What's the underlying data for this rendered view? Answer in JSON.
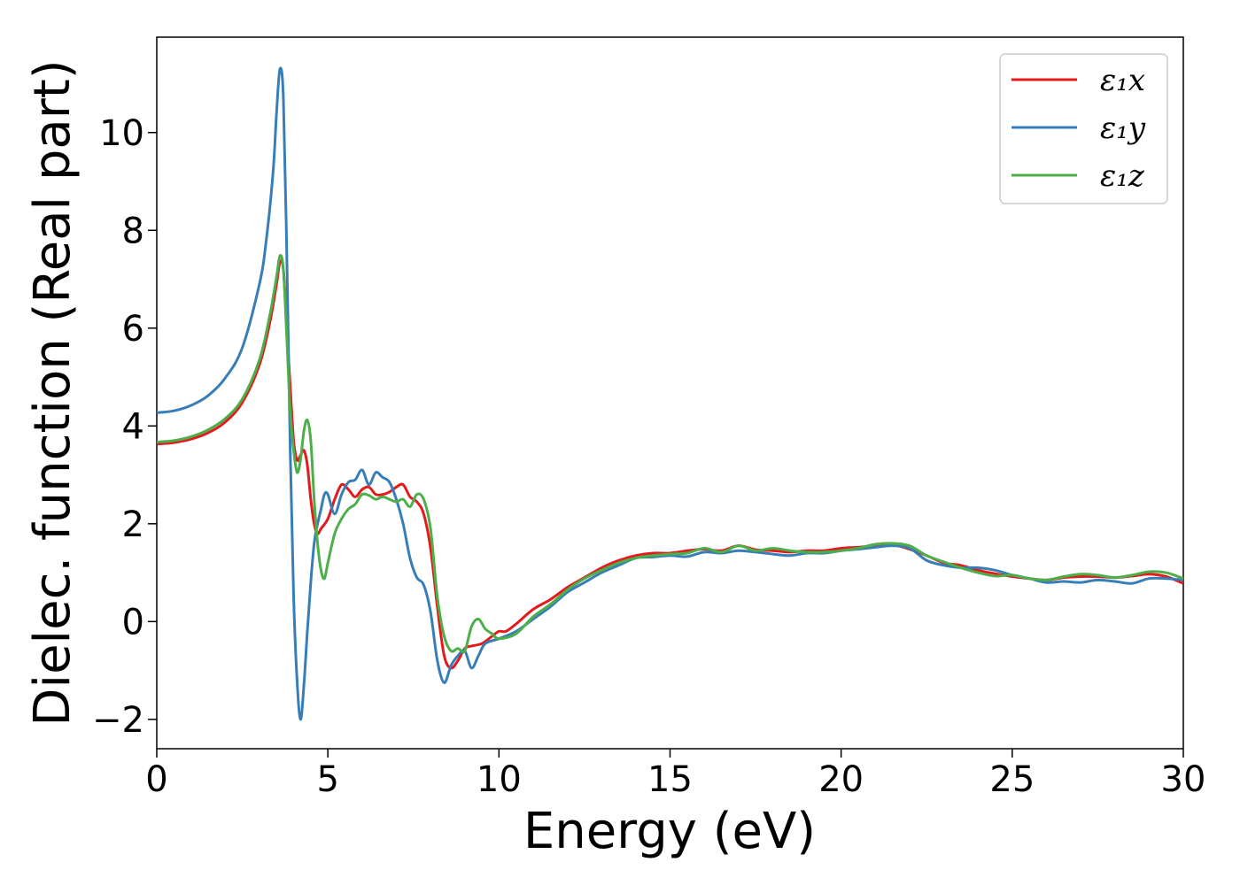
{
  "chart_data": {
    "type": "line",
    "xlabel": "Energy (eV)",
    "ylabel": "Dielec. function (Real part)",
    "xlim": [
      0,
      30
    ],
    "ylim": [
      -2.6,
      11.95
    ],
    "grid": false,
    "legend_position": "top-right",
    "x_ticks": [
      0,
      5,
      10,
      15,
      20,
      25,
      30
    ],
    "x_tick_labels": [
      "0",
      "5",
      "10",
      "15",
      "20",
      "25",
      "30"
    ],
    "y_ticks": [
      -2,
      0,
      2,
      4,
      6,
      8,
      10
    ],
    "y_tick_labels": [
      "−2",
      "0",
      "2",
      "4",
      "6",
      "8",
      "10"
    ],
    "series": [
      {
        "name": "ε₁x",
        "color": "#e41a1c",
        "points": [
          [
            0,
            3.63
          ],
          [
            0.5,
            3.66
          ],
          [
            1,
            3.73
          ],
          [
            1.5,
            3.86
          ],
          [
            2,
            4.08
          ],
          [
            2.5,
            4.48
          ],
          [
            3,
            5.25
          ],
          [
            3.3,
            6.1
          ],
          [
            3.5,
            6.9
          ],
          [
            3.6,
            7.35
          ],
          [
            3.7,
            7.2
          ],
          [
            3.8,
            6.0
          ],
          [
            3.9,
            4.8
          ],
          [
            4.0,
            3.7
          ],
          [
            4.1,
            3.3
          ],
          [
            4.2,
            3.4
          ],
          [
            4.3,
            3.5
          ],
          [
            4.4,
            3.2
          ],
          [
            4.5,
            2.5
          ],
          [
            4.6,
            2.0
          ],
          [
            4.7,
            1.8
          ],
          [
            4.8,
            1.9
          ],
          [
            5.0,
            2.1
          ],
          [
            5.2,
            2.5
          ],
          [
            5.4,
            2.8
          ],
          [
            5.6,
            2.7
          ],
          [
            5.8,
            2.55
          ],
          [
            6.0,
            2.7
          ],
          [
            6.2,
            2.75
          ],
          [
            6.4,
            2.6
          ],
          [
            6.6,
            2.6
          ],
          [
            6.8,
            2.65
          ],
          [
            7.0,
            2.75
          ],
          [
            7.2,
            2.8
          ],
          [
            7.4,
            2.55
          ],
          [
            7.6,
            2.45
          ],
          [
            7.8,
            2.2
          ],
          [
            8.0,
            1.5
          ],
          [
            8.2,
            0.3
          ],
          [
            8.4,
            -0.7
          ],
          [
            8.6,
            -0.95
          ],
          [
            8.8,
            -0.8
          ],
          [
            9.0,
            -0.55
          ],
          [
            9.2,
            -0.5
          ],
          [
            9.5,
            -0.45
          ],
          [
            9.8,
            -0.3
          ],
          [
            10.0,
            -0.2
          ],
          [
            10.2,
            -0.2
          ],
          [
            10.5,
            -0.05
          ],
          [
            11.0,
            0.25
          ],
          [
            11.5,
            0.45
          ],
          [
            12.0,
            0.7
          ],
          [
            12.5,
            0.9
          ],
          [
            13.0,
            1.1
          ],
          [
            13.5,
            1.25
          ],
          [
            14.0,
            1.35
          ],
          [
            14.5,
            1.4
          ],
          [
            15.0,
            1.4
          ],
          [
            15.5,
            1.45
          ],
          [
            16.0,
            1.48
          ],
          [
            16.5,
            1.45
          ],
          [
            17.0,
            1.55
          ],
          [
            17.5,
            1.47
          ],
          [
            18.0,
            1.45
          ],
          [
            18.5,
            1.42
          ],
          [
            19.0,
            1.45
          ],
          [
            19.5,
            1.45
          ],
          [
            20.0,
            1.5
          ],
          [
            20.5,
            1.52
          ],
          [
            21.0,
            1.55
          ],
          [
            21.5,
            1.57
          ],
          [
            22.0,
            1.48
          ],
          [
            22.5,
            1.35
          ],
          [
            23.0,
            1.2
          ],
          [
            23.5,
            1.15
          ],
          [
            24.0,
            1.05
          ],
          [
            24.5,
            0.98
          ],
          [
            25.0,
            0.92
          ],
          [
            25.5,
            0.88
          ],
          [
            26.0,
            0.85
          ],
          [
            26.5,
            0.9
          ],
          [
            27.0,
            0.92
          ],
          [
            27.5,
            0.92
          ],
          [
            28.0,
            0.9
          ],
          [
            28.5,
            0.93
          ],
          [
            29.0,
            0.97
          ],
          [
            29.5,
            0.92
          ],
          [
            30.0,
            0.78
          ]
        ]
      },
      {
        "name": "ε₁y",
        "color": "#377eb8",
        "points": [
          [
            0,
            4.27
          ],
          [
            0.5,
            4.31
          ],
          [
            1,
            4.42
          ],
          [
            1.5,
            4.62
          ],
          [
            2,
            4.98
          ],
          [
            2.5,
            5.6
          ],
          [
            3,
            6.9
          ],
          [
            3.2,
            7.8
          ],
          [
            3.4,
            9.2
          ],
          [
            3.5,
            10.4
          ],
          [
            3.6,
            11.3
          ],
          [
            3.7,
            10.7
          ],
          [
            3.8,
            7.5
          ],
          [
            3.9,
            3.5
          ],
          [
            4.0,
            0.5
          ],
          [
            4.1,
            -1.2
          ],
          [
            4.2,
            -2.0
          ],
          [
            4.3,
            -1.3
          ],
          [
            4.4,
            -0.2
          ],
          [
            4.5,
            0.8
          ],
          [
            4.6,
            1.6
          ],
          [
            4.7,
            2.0
          ],
          [
            4.8,
            2.3
          ],
          [
            4.9,
            2.6
          ],
          [
            5.0,
            2.6
          ],
          [
            5.2,
            2.2
          ],
          [
            5.4,
            2.6
          ],
          [
            5.6,
            2.85
          ],
          [
            5.8,
            2.9
          ],
          [
            6.0,
            3.1
          ],
          [
            6.2,
            2.8
          ],
          [
            6.4,
            3.05
          ],
          [
            6.6,
            2.95
          ],
          [
            6.8,
            2.85
          ],
          [
            7.0,
            2.5
          ],
          [
            7.2,
            2.0
          ],
          [
            7.4,
            1.3
          ],
          [
            7.6,
            0.9
          ],
          [
            7.8,
            0.75
          ],
          [
            8.0,
            0.2
          ],
          [
            8.2,
            -0.8
          ],
          [
            8.4,
            -1.25
          ],
          [
            8.6,
            -0.9
          ],
          [
            8.8,
            -0.7
          ],
          [
            9.0,
            -0.6
          ],
          [
            9.2,
            -0.95
          ],
          [
            9.4,
            -0.7
          ],
          [
            9.6,
            -0.45
          ],
          [
            10.0,
            -0.35
          ],
          [
            10.5,
            -0.2
          ],
          [
            11.0,
            0.05
          ],
          [
            11.5,
            0.3
          ],
          [
            12.0,
            0.6
          ],
          [
            12.5,
            0.8
          ],
          [
            13.0,
            1.0
          ],
          [
            13.5,
            1.15
          ],
          [
            14.0,
            1.3
          ],
          [
            14.5,
            1.32
          ],
          [
            15.0,
            1.35
          ],
          [
            15.5,
            1.33
          ],
          [
            16.0,
            1.42
          ],
          [
            16.5,
            1.4
          ],
          [
            17.0,
            1.45
          ],
          [
            17.5,
            1.42
          ],
          [
            18.0,
            1.38
          ],
          [
            18.5,
            1.35
          ],
          [
            19.0,
            1.4
          ],
          [
            19.5,
            1.4
          ],
          [
            20.0,
            1.45
          ],
          [
            20.5,
            1.48
          ],
          [
            21.0,
            1.52
          ],
          [
            21.5,
            1.55
          ],
          [
            22.0,
            1.5
          ],
          [
            22.5,
            1.25
          ],
          [
            23.0,
            1.15
          ],
          [
            23.5,
            1.1
          ],
          [
            24.0,
            1.1
          ],
          [
            24.5,
            1.05
          ],
          [
            25.0,
            0.95
          ],
          [
            25.5,
            0.88
          ],
          [
            26.0,
            0.8
          ],
          [
            26.5,
            0.82
          ],
          [
            27.0,
            0.8
          ],
          [
            27.5,
            0.85
          ],
          [
            28.0,
            0.82
          ],
          [
            28.5,
            0.78
          ],
          [
            29.0,
            0.88
          ],
          [
            29.5,
            0.88
          ],
          [
            30.0,
            0.85
          ]
        ]
      },
      {
        "name": "ε₁z",
        "color": "#4daf4a",
        "points": [
          [
            0,
            3.67
          ],
          [
            0.5,
            3.7
          ],
          [
            1,
            3.78
          ],
          [
            1.5,
            3.92
          ],
          [
            2,
            4.15
          ],
          [
            2.5,
            4.55
          ],
          [
            3,
            5.35
          ],
          [
            3.3,
            6.25
          ],
          [
            3.5,
            7.05
          ],
          [
            3.6,
            7.48
          ],
          [
            3.7,
            7.2
          ],
          [
            3.8,
            5.8
          ],
          [
            3.9,
            4.3
          ],
          [
            4.0,
            3.5
          ],
          [
            4.1,
            3.05
          ],
          [
            4.2,
            3.3
          ],
          [
            4.3,
            3.9
          ],
          [
            4.4,
            4.12
          ],
          [
            4.5,
            3.7
          ],
          [
            4.6,
            2.5
          ],
          [
            4.7,
            1.6
          ],
          [
            4.8,
            1.05
          ],
          [
            4.9,
            0.88
          ],
          [
            5.0,
            1.2
          ],
          [
            5.2,
            1.8
          ],
          [
            5.4,
            2.1
          ],
          [
            5.6,
            2.3
          ],
          [
            5.8,
            2.4
          ],
          [
            6.0,
            2.6
          ],
          [
            6.2,
            2.58
          ],
          [
            6.4,
            2.5
          ],
          [
            6.6,
            2.55
          ],
          [
            6.8,
            2.5
          ],
          [
            7.0,
            2.45
          ],
          [
            7.2,
            2.5
          ],
          [
            7.4,
            2.35
          ],
          [
            7.6,
            2.6
          ],
          [
            7.8,
            2.5
          ],
          [
            8.0,
            1.9
          ],
          [
            8.2,
            0.5
          ],
          [
            8.4,
            -0.3
          ],
          [
            8.6,
            -0.6
          ],
          [
            8.8,
            -0.55
          ],
          [
            9.0,
            -0.6
          ],
          [
            9.2,
            -0.1
          ],
          [
            9.4,
            0.05
          ],
          [
            9.6,
            -0.15
          ],
          [
            9.8,
            -0.25
          ],
          [
            10.0,
            -0.35
          ],
          [
            10.5,
            -0.25
          ],
          [
            11.0,
            0.1
          ],
          [
            11.5,
            0.35
          ],
          [
            12.0,
            0.65
          ],
          [
            12.5,
            0.88
          ],
          [
            13.0,
            1.05
          ],
          [
            13.5,
            1.2
          ],
          [
            14.0,
            1.3
          ],
          [
            14.5,
            1.35
          ],
          [
            15.0,
            1.38
          ],
          [
            15.5,
            1.4
          ],
          [
            16.0,
            1.5
          ],
          [
            16.5,
            1.42
          ],
          [
            17.0,
            1.55
          ],
          [
            17.5,
            1.45
          ],
          [
            18.0,
            1.5
          ],
          [
            18.5,
            1.45
          ],
          [
            19.0,
            1.42
          ],
          [
            19.5,
            1.42
          ],
          [
            20.0,
            1.45
          ],
          [
            20.5,
            1.5
          ],
          [
            21.0,
            1.58
          ],
          [
            21.5,
            1.6
          ],
          [
            22.0,
            1.55
          ],
          [
            22.5,
            1.35
          ],
          [
            23.0,
            1.22
          ],
          [
            23.5,
            1.1
          ],
          [
            24.0,
            1.0
          ],
          [
            24.5,
            0.93
          ],
          [
            25.0,
            0.95
          ],
          [
            25.5,
            0.88
          ],
          [
            26.0,
            0.85
          ],
          [
            26.5,
            0.92
          ],
          [
            27.0,
            0.97
          ],
          [
            27.5,
            0.95
          ],
          [
            28.0,
            0.9
          ],
          [
            28.5,
            0.95
          ],
          [
            29.0,
            1.02
          ],
          [
            29.5,
            1.0
          ],
          [
            30.0,
            0.88
          ]
        ]
      }
    ]
  }
}
